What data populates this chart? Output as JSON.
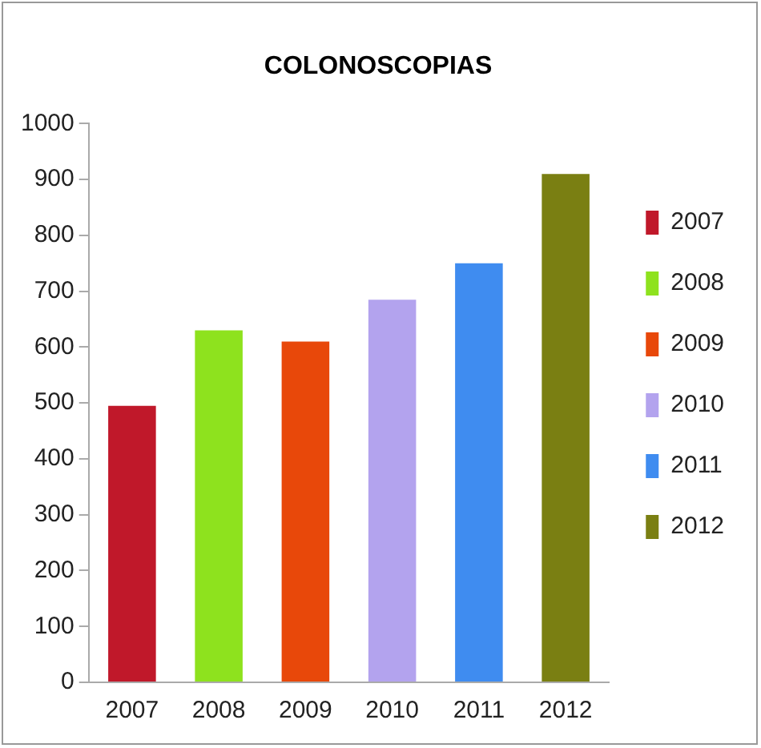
{
  "chart_data": {
    "type": "bar",
    "title": "COLONOSCOPIAS",
    "categories": [
      "2007",
      "2008",
      "2009",
      "2010",
      "2011",
      "2012"
    ],
    "series": [
      {
        "name": "2007",
        "color": "#c0182a",
        "values": [
          495,
          null,
          null,
          null,
          null,
          null
        ]
      },
      {
        "name": "2008",
        "color": "#8ee21e",
        "values": [
          null,
          630,
          null,
          null,
          null,
          null
        ]
      },
      {
        "name": "2009",
        "color": "#e8480a",
        "values": [
          null,
          null,
          610,
          null,
          null,
          null
        ]
      },
      {
        "name": "2010",
        "color": "#b3a3ee",
        "values": [
          null,
          null,
          null,
          685,
          null,
          null
        ]
      },
      {
        "name": "2011",
        "color": "#3f8cf0",
        "values": [
          null,
          null,
          null,
          null,
          750,
          null
        ]
      },
      {
        "name": "2012",
        "color": "#7a7f12",
        "values": [
          null,
          null,
          null,
          null,
          null,
          910
        ]
      }
    ],
    "ylim": [
      0,
      1000
    ],
    "yticks": [
      0,
      100,
      200,
      300,
      400,
      500,
      600,
      700,
      800,
      900,
      1000
    ],
    "grid": false,
    "legend": "right"
  }
}
